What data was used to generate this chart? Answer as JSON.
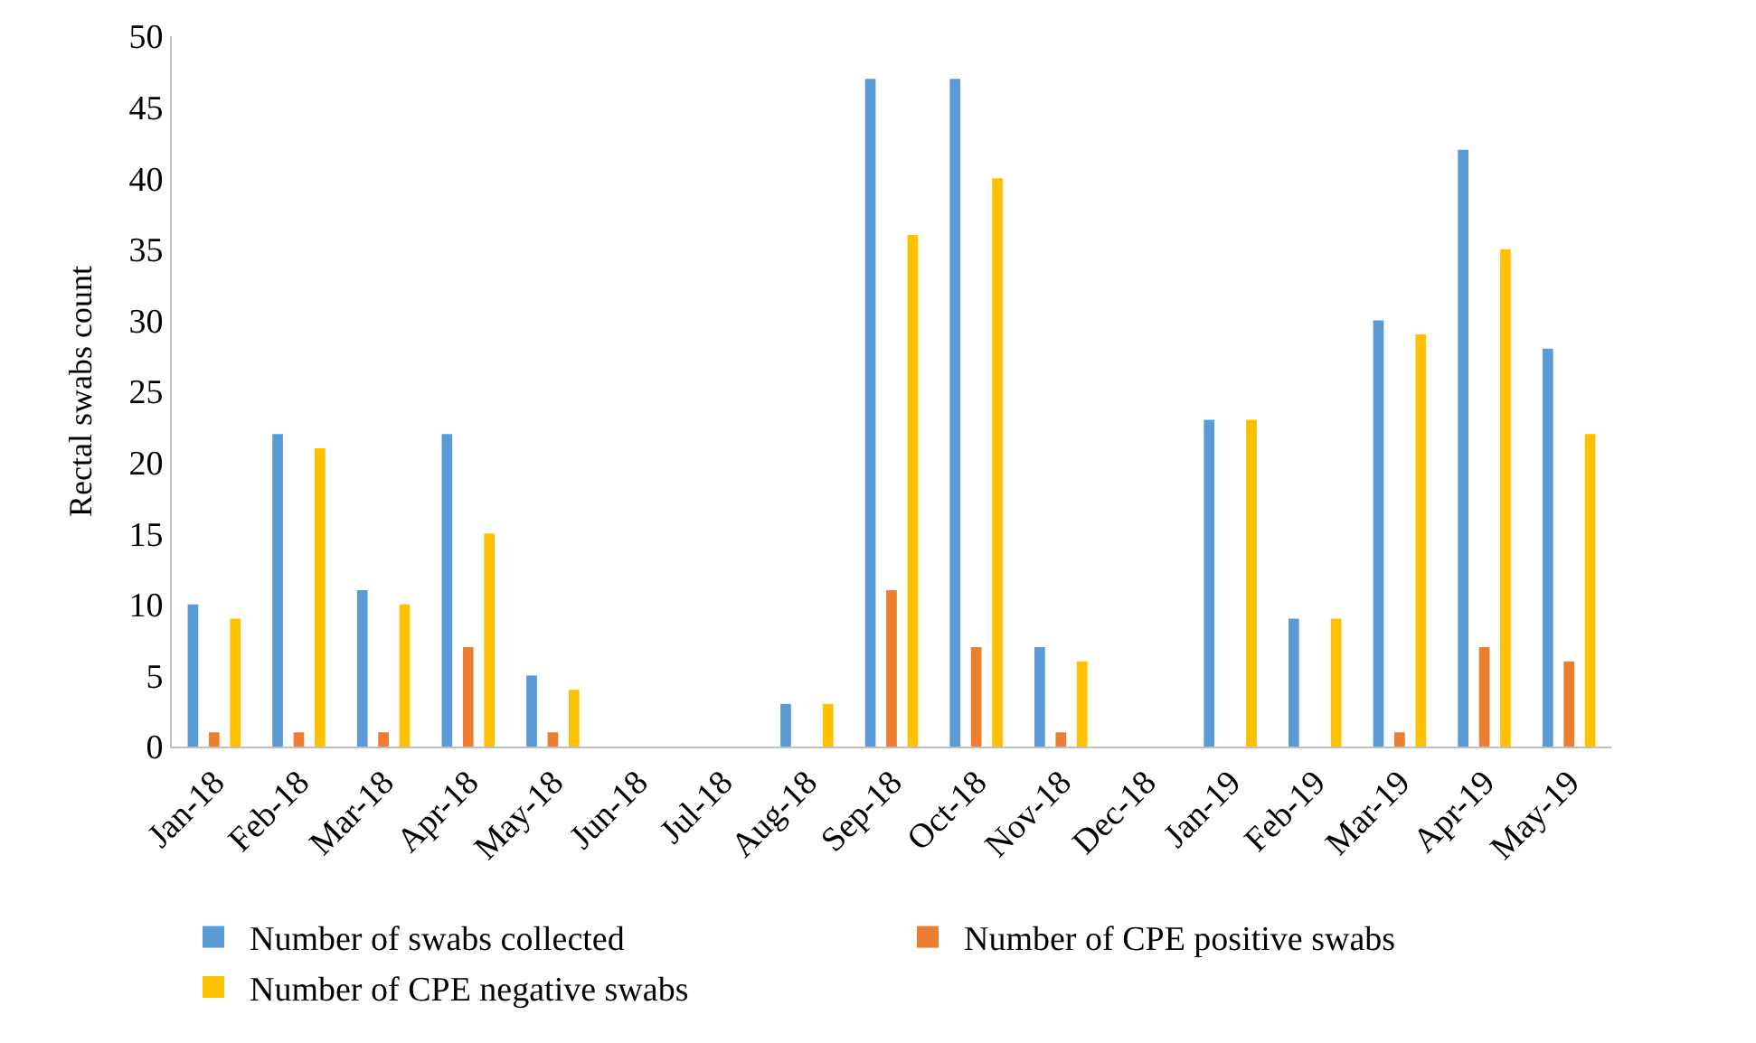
{
  "chart_data": {
    "type": "bar",
    "ylabel": "Rectal swabs count",
    "categories": [
      "Jan-18",
      "Feb-18",
      "Mar-18",
      "Apr-18",
      "May-18",
      "Jun-18",
      "Jul-18",
      "Aug-18",
      "Sep-18",
      "Oct-18",
      "Nov-18",
      "Dec-18",
      "Jan-19",
      "Feb-19",
      "Mar-19",
      "Apr-19",
      "May-19"
    ],
    "series": [
      {
        "name": "Number of swabs collected",
        "color": "#5b9bd5",
        "values": [
          10,
          22,
          11,
          22,
          5,
          0,
          0,
          3,
          47,
          47,
          7,
          0,
          23,
          9,
          30,
          42,
          28
        ]
      },
      {
        "name": "Number of CPE positive swabs",
        "color": "#ed7d31",
        "values": [
          1,
          1,
          1,
          7,
          1,
          0,
          0,
          0,
          11,
          7,
          1,
          0,
          0,
          0,
          1,
          7,
          6
        ]
      },
      {
        "name": "Number of CPE negative swabs",
        "color": "#ffc000",
        "values": [
          9,
          21,
          10,
          15,
          4,
          0,
          0,
          3,
          36,
          40,
          6,
          0,
          23,
          9,
          29,
          35,
          22
        ]
      }
    ],
    "ylim": [
      0,
      50
    ],
    "yticks": [
      0,
      5,
      10,
      15,
      20,
      25,
      30,
      35,
      40,
      45,
      50
    ],
    "legend": "bottom"
  }
}
